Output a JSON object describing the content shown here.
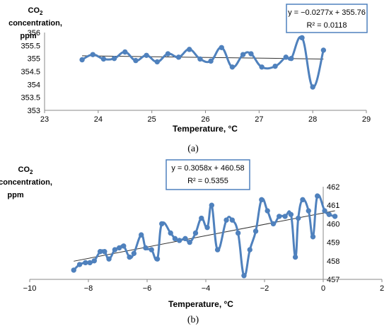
{
  "chart_data": [
    {
      "type": "scatter",
      "panel_label": "(a)",
      "ylabel_lines": [
        "CO",
        "concentration,",
        "ppm"
      ],
      "ylabel_sub": "2",
      "xlabel": "Temperature, °C",
      "xlim": [
        23,
        29
      ],
      "ylim": [
        353,
        356
      ],
      "xticks": [
        "23",
        "24",
        "25",
        "26",
        "27",
        "28",
        "29"
      ],
      "yticks": [
        "353",
        "353.5",
        "354",
        "354.5",
        "355",
        "355.5",
        "356"
      ],
      "equation": "y = −0.0277x + 355.76",
      "r2": "R² = 0.0118",
      "trendline": {
        "slope": -0.0277,
        "intercept": 355.76,
        "x_range": [
          23.7,
          28.2
        ]
      },
      "series_color": "#4F81BD",
      "x": [
        23.7,
        23.9,
        24.1,
        24.3,
        24.5,
        24.7,
        24.9,
        25.1,
        25.3,
        25.5,
        25.7,
        25.9,
        26.1,
        26.3,
        26.5,
        26.7,
        26.85,
        27.05,
        27.3,
        27.5,
        27.6,
        27.8,
        28.0,
        28.2
      ],
      "y": [
        354.95,
        355.15,
        354.98,
        355.0,
        355.25,
        354.92,
        355.12,
        354.87,
        355.18,
        355.05,
        355.35,
        354.98,
        354.9,
        355.42,
        354.67,
        355.15,
        355.18,
        354.67,
        354.7,
        355.05,
        355.0,
        355.8,
        353.9,
        355.32
      ]
    },
    {
      "type": "scatter",
      "panel_label": "(b)",
      "ylabel_lines": [
        "CO",
        "concentration,",
        "ppm"
      ],
      "ylabel_sub": "2",
      "xlabel": "Temperature, °C",
      "xlim": [
        -10,
        2
      ],
      "ylim": [
        457,
        462
      ],
      "xticks": [
        "−10",
        "−8",
        "−6",
        "−4",
        "−2",
        "0",
        "2"
      ],
      "yticks": [
        "457",
        "458",
        "459",
        "460",
        "461",
        "462"
      ],
      "equation": "y = 0.3058x + 460.58",
      "r2": "R² = 0.5355",
      "trendline": {
        "slope": 0.3058,
        "intercept": 460.58,
        "x_range": [
          -8.5,
          0.4
        ]
      },
      "series_color": "#4F81BD",
      "x": [
        -8.5,
        -8.3,
        -8.1,
        -7.95,
        -7.8,
        -7.6,
        -7.45,
        -7.3,
        -7.1,
        -6.95,
        -6.8,
        -6.6,
        -6.45,
        -6.2,
        -6.05,
        -5.85,
        -5.65,
        -5.5,
        -5.2,
        -5.05,
        -4.9,
        -4.7,
        -4.55,
        -4.35,
        -4.15,
        -3.95,
        -3.8,
        -3.6,
        -3.3,
        -3.1,
        -2.9,
        -2.7,
        -2.5,
        -2.3,
        -2.1,
        -1.9,
        -1.7,
        -1.5,
        -1.3,
        -1.1,
        -0.95,
        -0.85,
        -0.7,
        -0.5,
        -0.35,
        -0.2,
        0.05,
        0.2,
        0.4
      ],
      "y": [
        457.5,
        457.8,
        457.9,
        457.9,
        458.0,
        458.5,
        458.5,
        458.1,
        458.6,
        458.7,
        458.8,
        458.2,
        458.4,
        459.4,
        458.7,
        458.6,
        458.1,
        460.0,
        459.5,
        459.2,
        459.1,
        459.2,
        459.0,
        459.5,
        460.3,
        459.8,
        461.0,
        458.6,
        460.2,
        460.2,
        459.5,
        457.2,
        458.6,
        459.6,
        461.3,
        460.7,
        460.0,
        460.4,
        460.4,
        460.5,
        458.2,
        460.3,
        461.3,
        460.7,
        459.3,
        461.5,
        460.7,
        460.5,
        460.4
      ]
    }
  ]
}
